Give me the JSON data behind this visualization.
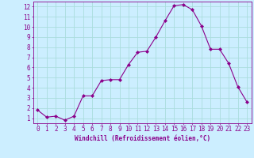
{
  "x": [
    0,
    1,
    2,
    3,
    4,
    5,
    6,
    7,
    8,
    9,
    10,
    11,
    12,
    13,
    14,
    15,
    16,
    17,
    18,
    19,
    20,
    21,
    22,
    23
  ],
  "y": [
    1.8,
    1.1,
    1.2,
    0.8,
    1.2,
    3.2,
    3.2,
    4.7,
    4.8,
    4.8,
    6.3,
    7.5,
    7.6,
    9.0,
    10.6,
    12.1,
    12.2,
    11.7,
    10.1,
    7.8,
    7.8,
    6.4,
    4.1,
    2.6
  ],
  "line_color": "#8b008b",
  "marker": "D",
  "marker_size": 2,
  "bg_color": "#cceeff",
  "grid_color": "#aadddd",
  "xlabel": "Windchill (Refroidissement éolien,°C)",
  "xlabel_color": "#8b008b",
  "tick_color": "#8b008b",
  "ylim": [
    0.5,
    12.5
  ],
  "xlim": [
    -0.5,
    23.5
  ],
  "yticks": [
    1,
    2,
    3,
    4,
    5,
    6,
    7,
    8,
    9,
    10,
    11,
    12
  ],
  "xticks": [
    0,
    1,
    2,
    3,
    4,
    5,
    6,
    7,
    8,
    9,
    10,
    11,
    12,
    13,
    14,
    15,
    16,
    17,
    18,
    19,
    20,
    21,
    22,
    23
  ],
  "spine_color": "#8b008b",
  "tick_fontsize": 5.5,
  "xlabel_fontsize": 5.5
}
